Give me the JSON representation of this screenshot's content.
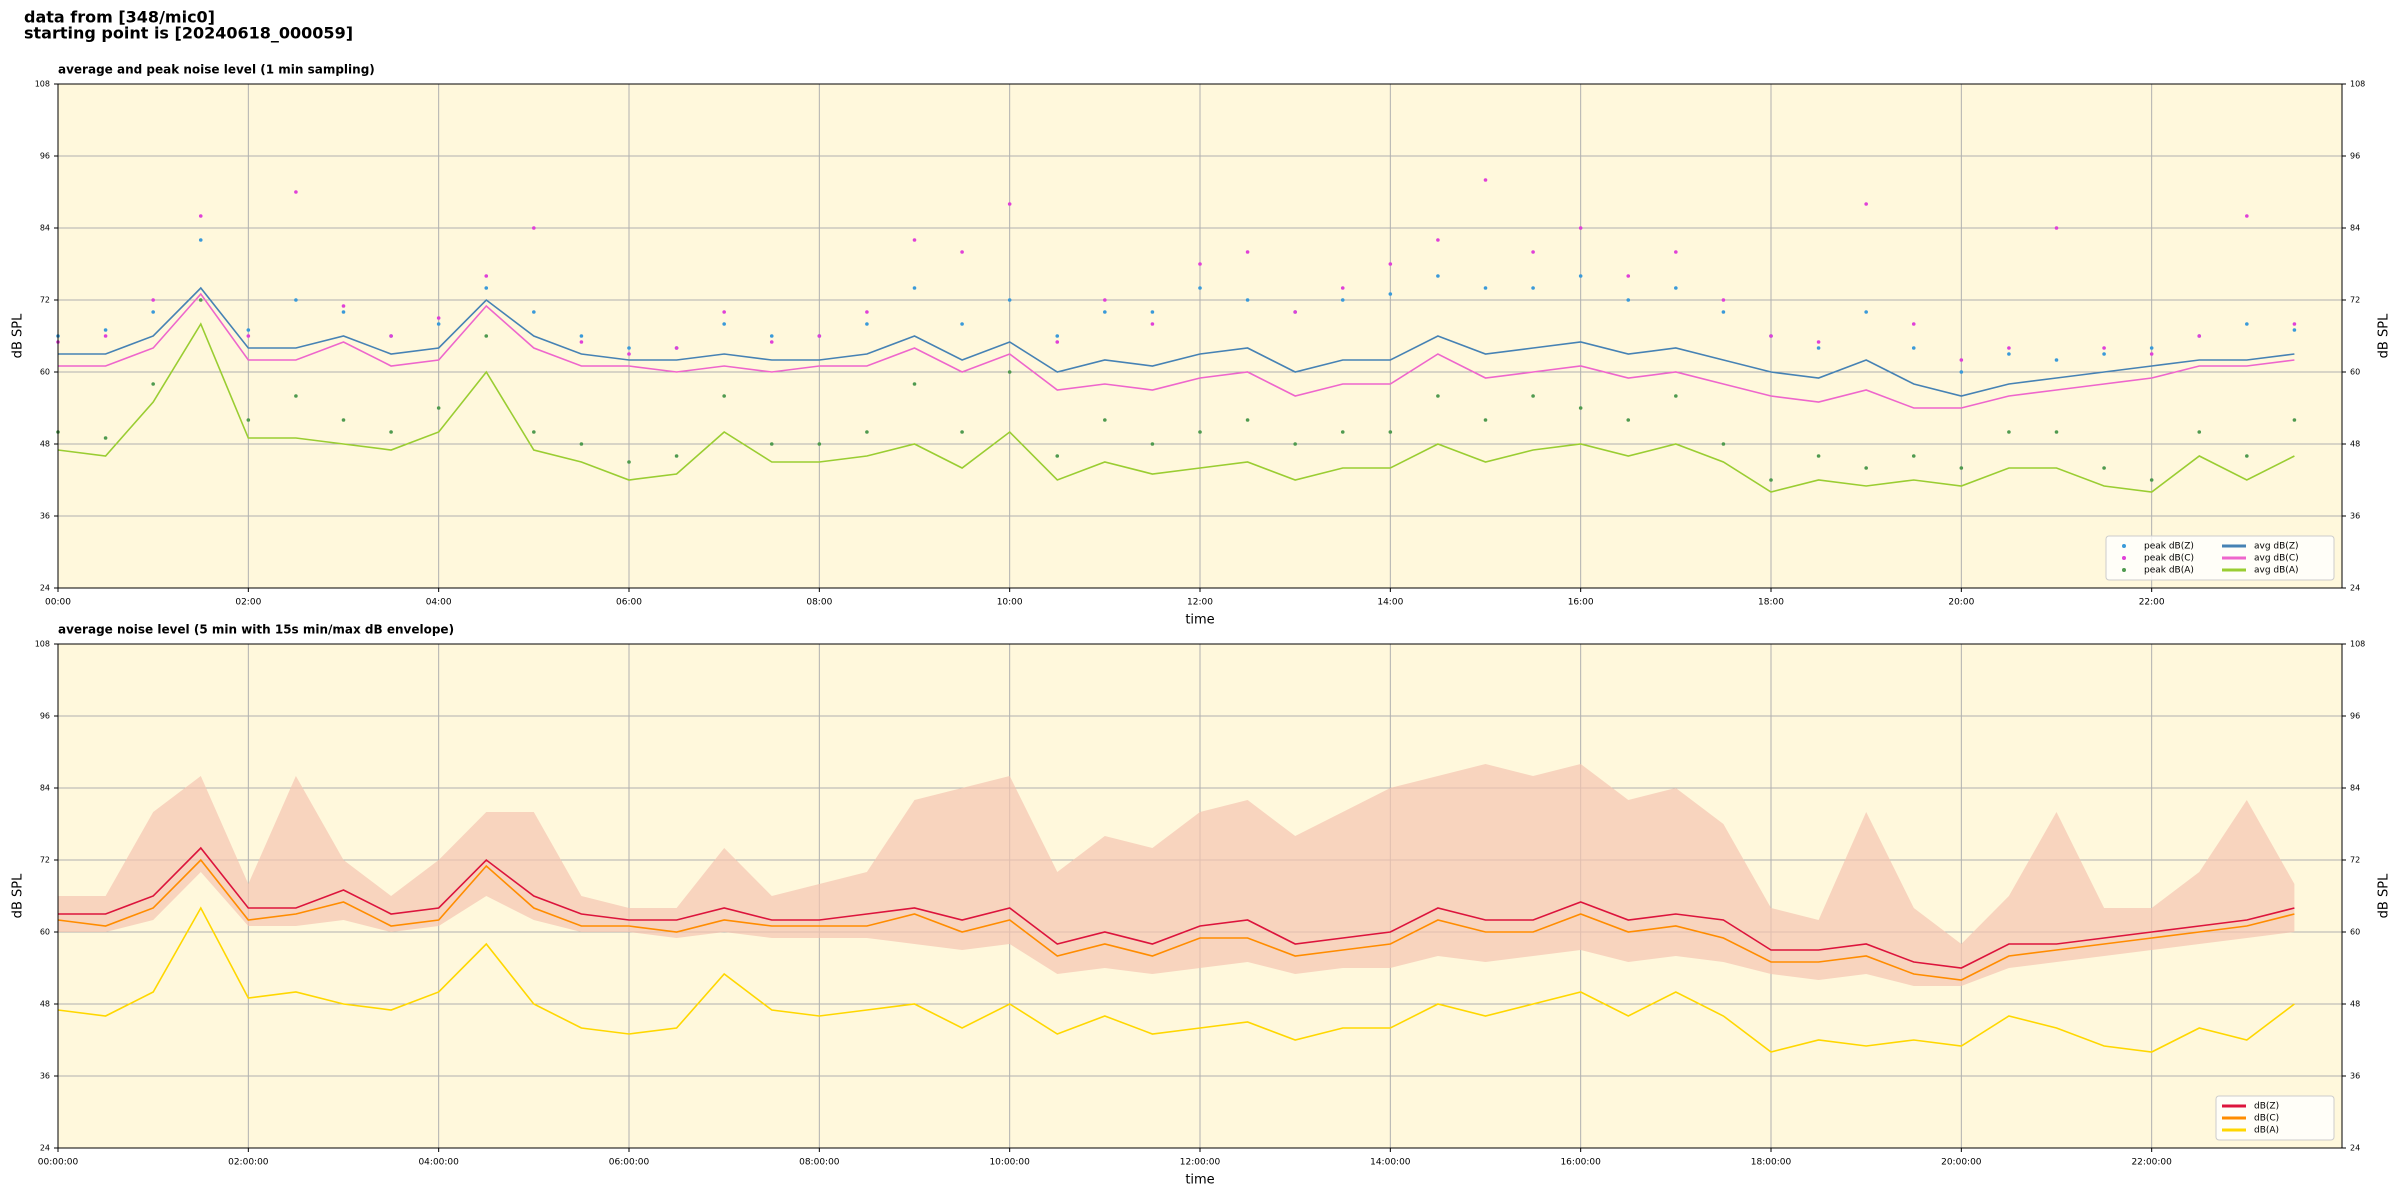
{
  "suptitle": [
    "data from [348/mic0]",
    "starting point is [20240618_000059]"
  ],
  "chart_data": [
    {
      "type": "line",
      "title": "average and peak noise level (1 min sampling)",
      "xlabel": "time",
      "ylabel": "dB SPL",
      "background": "#fff8dc",
      "grid": true,
      "legend": "lower right",
      "legend_columns": 2,
      "xlim": [
        0,
        24
      ],
      "ylim": [
        24,
        108
      ],
      "yticks": [
        24,
        36,
        48,
        60,
        72,
        84,
        96,
        108
      ],
      "xticks": [
        {
          "value": 0,
          "label": "00:00"
        },
        {
          "value": 2,
          "label": "02:00"
        },
        {
          "value": 4,
          "label": "04:00"
        },
        {
          "value": 6,
          "label": "06:00"
        },
        {
          "value": 8,
          "label": "08:00"
        },
        {
          "value": 10,
          "label": "10:00"
        },
        {
          "value": 12,
          "label": "12:00"
        },
        {
          "value": 14,
          "label": "14:00"
        },
        {
          "value": 16,
          "label": "16:00"
        },
        {
          "value": 18,
          "label": "18:00"
        },
        {
          "value": 20,
          "label": "20:00"
        },
        {
          "value": 22,
          "label": "22:00"
        }
      ],
      "x": [
        0,
        0.5,
        1,
        1.5,
        2,
        2.5,
        3,
        3.5,
        4,
        4.5,
        5,
        5.5,
        6,
        6.5,
        7,
        7.5,
        8,
        8.5,
        9,
        9.5,
        10,
        10.5,
        11,
        11.5,
        12,
        12.5,
        13,
        13.5,
        14,
        14.5,
        15,
        15.5,
        16,
        16.5,
        17,
        17.5,
        18,
        18.5,
        19,
        19.5,
        20,
        20.5,
        21,
        21.5,
        22,
        22.5,
        23,
        23.5
      ],
      "series": [
        {
          "name": "peak dB(Z)",
          "style": "points",
          "color": "#3a9ad9",
          "values": [
            66,
            67,
            70,
            82,
            67,
            72,
            70,
            66,
            68,
            74,
            70,
            66,
            64,
            64,
            68,
            66,
            66,
            68,
            74,
            68,
            72,
            66,
            70,
            70,
            74,
            72,
            70,
            72,
            73,
            76,
            74,
            74,
            76,
            72,
            74,
            70,
            66,
            64,
            70,
            64,
            60,
            63,
            62,
            63,
            64,
            66,
            68,
            67
          ]
        },
        {
          "name": "peak dB(C)",
          "style": "points",
          "color": "#e040d8",
          "values": [
            65,
            66,
            72,
            86,
            66,
            90,
            71,
            66,
            69,
            76,
            84,
            65,
            63,
            64,
            70,
            65,
            66,
            70,
            82,
            80,
            88,
            65,
            72,
            68,
            78,
            80,
            70,
            74,
            78,
            82,
            92,
            80,
            84,
            76,
            80,
            72,
            66,
            65,
            88,
            68,
            62,
            64,
            84,
            64,
            63,
            66,
            86,
            68
          ]
        },
        {
          "name": "peak dB(A)",
          "style": "points",
          "color": "#4f9a4f",
          "values": [
            50,
            49,
            58,
            72,
            52,
            56,
            52,
            50,
            54,
            66,
            50,
            48,
            45,
            46,
            56,
            48,
            48,
            50,
            58,
            50,
            60,
            46,
            52,
            48,
            50,
            52,
            48,
            50,
            50,
            56,
            52,
            56,
            54,
            52,
            56,
            48,
            42,
            46,
            44,
            46,
            44,
            50,
            50,
            44,
            42,
            50,
            46,
            52
          ]
        },
        {
          "name": "avg dB(Z)",
          "style": "line",
          "color": "#4682b4",
          "values": [
            63,
            63,
            66,
            74,
            64,
            64,
            66,
            63,
            64,
            72,
            66,
            63,
            62,
            62,
            63,
            62,
            62,
            63,
            66,
            62,
            65,
            60,
            62,
            61,
            63,
            64,
            60,
            62,
            62,
            66,
            63,
            64,
            65,
            63,
            64,
            62,
            60,
            59,
            62,
            58,
            56,
            58,
            59,
            60,
            61,
            62,
            62,
            63
          ]
        },
        {
          "name": "avg dB(C)",
          "style": "line",
          "color": "#ee66cc",
          "values": [
            61,
            61,
            64,
            73,
            62,
            62,
            65,
            61,
            62,
            71,
            64,
            61,
            61,
            60,
            61,
            60,
            61,
            61,
            64,
            60,
            63,
            57,
            58,
            57,
            59,
            60,
            56,
            58,
            58,
            63,
            59,
            60,
            61,
            59,
            60,
            58,
            56,
            55,
            57,
            54,
            54,
            56,
            57,
            58,
            59,
            61,
            61,
            62
          ]
        },
        {
          "name": "avg dB(A)",
          "style": "line",
          "color": "#9acd32",
          "values": [
            47,
            46,
            55,
            68,
            49,
            49,
            48,
            47,
            50,
            60,
            47,
            45,
            42,
            43,
            50,
            45,
            45,
            46,
            48,
            44,
            50,
            42,
            45,
            43,
            44,
            45,
            42,
            44,
            44,
            48,
            45,
            47,
            48,
            46,
            48,
            45,
            40,
            42,
            41,
            42,
            41,
            44,
            44,
            41,
            40,
            46,
            42,
            46
          ]
        }
      ]
    },
    {
      "type": "line",
      "title": "average noise level (5 min with 15s min/max dB envelope)",
      "xlabel": "time",
      "ylabel": "dB SPL",
      "background": "#fff8dc",
      "grid": true,
      "legend": "lower right",
      "legend_columns": 1,
      "xlim": [
        0,
        24
      ],
      "ylim": [
        24,
        108
      ],
      "yticks": [
        24,
        36,
        48,
        60,
        72,
        84,
        96,
        108
      ],
      "xticks": [
        {
          "value": 0,
          "label": "00:00:00"
        },
        {
          "value": 2,
          "label": "02:00:00"
        },
        {
          "value": 4,
          "label": "04:00:00"
        },
        {
          "value": 6,
          "label": "06:00:00"
        },
        {
          "value": 8,
          "label": "08:00:00"
        },
        {
          "value": 10,
          "label": "10:00:00"
        },
        {
          "value": 12,
          "label": "12:00:00"
        },
        {
          "value": 14,
          "label": "14:00:00"
        },
        {
          "value": 16,
          "label": "16:00:00"
        },
        {
          "value": 18,
          "label": "18:00:00"
        },
        {
          "value": 20,
          "label": "20:00:00"
        },
        {
          "value": 22,
          "label": "22:00:00"
        }
      ],
      "x": [
        0,
        0.5,
        1,
        1.5,
        2,
        2.5,
        3,
        3.5,
        4,
        4.5,
        5,
        5.5,
        6,
        6.5,
        7,
        7.5,
        8,
        8.5,
        9,
        9.5,
        10,
        10.5,
        11,
        11.5,
        12,
        12.5,
        13,
        13.5,
        14,
        14.5,
        15,
        15.5,
        16,
        16.5,
        17,
        17.5,
        18,
        18.5,
        19,
        19.5,
        20,
        20.5,
        21,
        21.5,
        22,
        22.5,
        23,
        23.5
      ],
      "band": {
        "color": "#f5c4b0",
        "lower": [
          60,
          60,
          62,
          70,
          61,
          61,
          62,
          60,
          61,
          66,
          62,
          60,
          60,
          59,
          60,
          59,
          59,
          59,
          58,
          57,
          58,
          53,
          54,
          53,
          54,
          55,
          53,
          54,
          54,
          56,
          55,
          56,
          57,
          55,
          56,
          55,
          53,
          52,
          53,
          51,
          51,
          54,
          55,
          56,
          57,
          58,
          59,
          60
        ],
        "upper": [
          66,
          66,
          80,
          86,
          68,
          86,
          72,
          66,
          72,
          80,
          80,
          66,
          64,
          64,
          74,
          66,
          68,
          70,
          82,
          84,
          86,
          70,
          76,
          74,
          80,
          82,
          76,
          80,
          84,
          86,
          88,
          86,
          88,
          82,
          84,
          78,
          64,
          62,
          80,
          64,
          58,
          66,
          80,
          64,
          64,
          70,
          82,
          68
        ]
      },
      "series": [
        {
          "name": "dB(Z)",
          "style": "line",
          "color": "#dc143c",
          "values": [
            63,
            63,
            66,
            74,
            64,
            64,
            67,
            63,
            64,
            72,
            66,
            63,
            62,
            62,
            64,
            62,
            62,
            63,
            64,
            62,
            64,
            58,
            60,
            58,
            61,
            62,
            58,
            59,
            60,
            64,
            62,
            62,
            65,
            62,
            63,
            62,
            57,
            57,
            58,
            55,
            54,
            58,
            58,
            59,
            60,
            61,
            62,
            64
          ]
        },
        {
          "name": "dB(C)",
          "style": "line",
          "color": "#ff8c00",
          "values": [
            62,
            61,
            64,
            72,
            62,
            63,
            65,
            61,
            62,
            71,
            64,
            61,
            61,
            60,
            62,
            61,
            61,
            61,
            63,
            60,
            62,
            56,
            58,
            56,
            59,
            59,
            56,
            57,
            58,
            62,
            60,
            60,
            63,
            60,
            61,
            59,
            55,
            55,
            56,
            53,
            52,
            56,
            57,
            58,
            59,
            60,
            61,
            63
          ]
        },
        {
          "name": "dB(A)",
          "style": "line",
          "color": "#ffd700",
          "values": [
            47,
            46,
            50,
            64,
            49,
            50,
            48,
            47,
            50,
            58,
            48,
            44,
            43,
            44,
            53,
            47,
            46,
            47,
            48,
            44,
            48,
            43,
            46,
            43,
            44,
            45,
            42,
            44,
            44,
            48,
            46,
            48,
            50,
            46,
            50,
            46,
            40,
            42,
            41,
            42,
            41,
            46,
            44,
            41,
            40,
            44,
            42,
            48
          ]
        }
      ]
    }
  ]
}
